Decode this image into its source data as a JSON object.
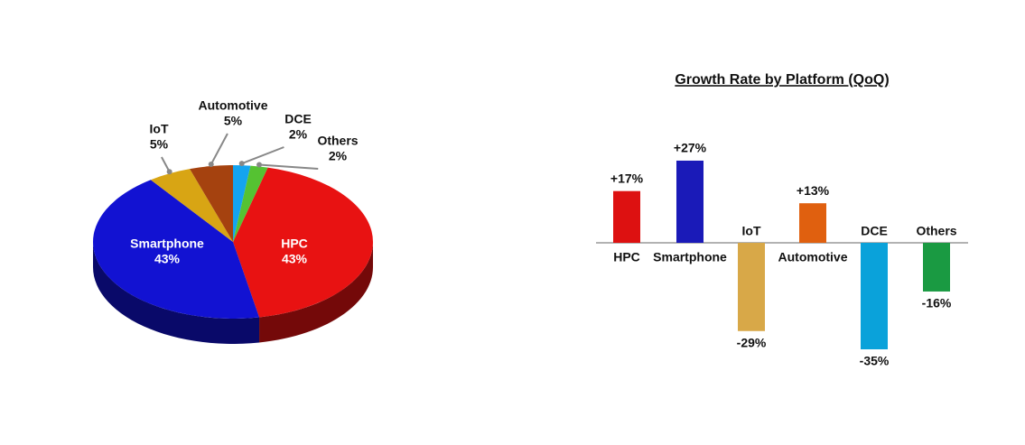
{
  "chart_data": [
    {
      "type": "pie",
      "categories": [
        "HPC",
        "Smartphone",
        "IoT",
        "Automotive",
        "DCE",
        "Others"
      ],
      "values": [
        43,
        43,
        5,
        5,
        2,
        2
      ],
      "value_labels": [
        "43%",
        "43%",
        "5%",
        "5%",
        "2%",
        "2%"
      ],
      "colors": [
        "#e81212",
        "#1212d2",
        "#d8a514",
        "#a5420f",
        "#14a4f0",
        "#55c232"
      ]
    },
    {
      "type": "bar",
      "title": "Growth Rate by Platform (QoQ)",
      "categories": [
        "HPC",
        "Smartphone",
        "IoT",
        "Automotive",
        "DCE",
        "Others"
      ],
      "values": [
        17,
        27,
        -29,
        13,
        -35,
        -16
      ],
      "value_labels": [
        "+17%",
        "+27%",
        "-29%",
        "+13%",
        "-35%",
        "-16%"
      ],
      "colors": [
        "#dd1111",
        "#1a1ab8",
        "#d8a848",
        "#e0600f",
        "#0aa2da",
        "#1a9a42"
      ]
    }
  ]
}
